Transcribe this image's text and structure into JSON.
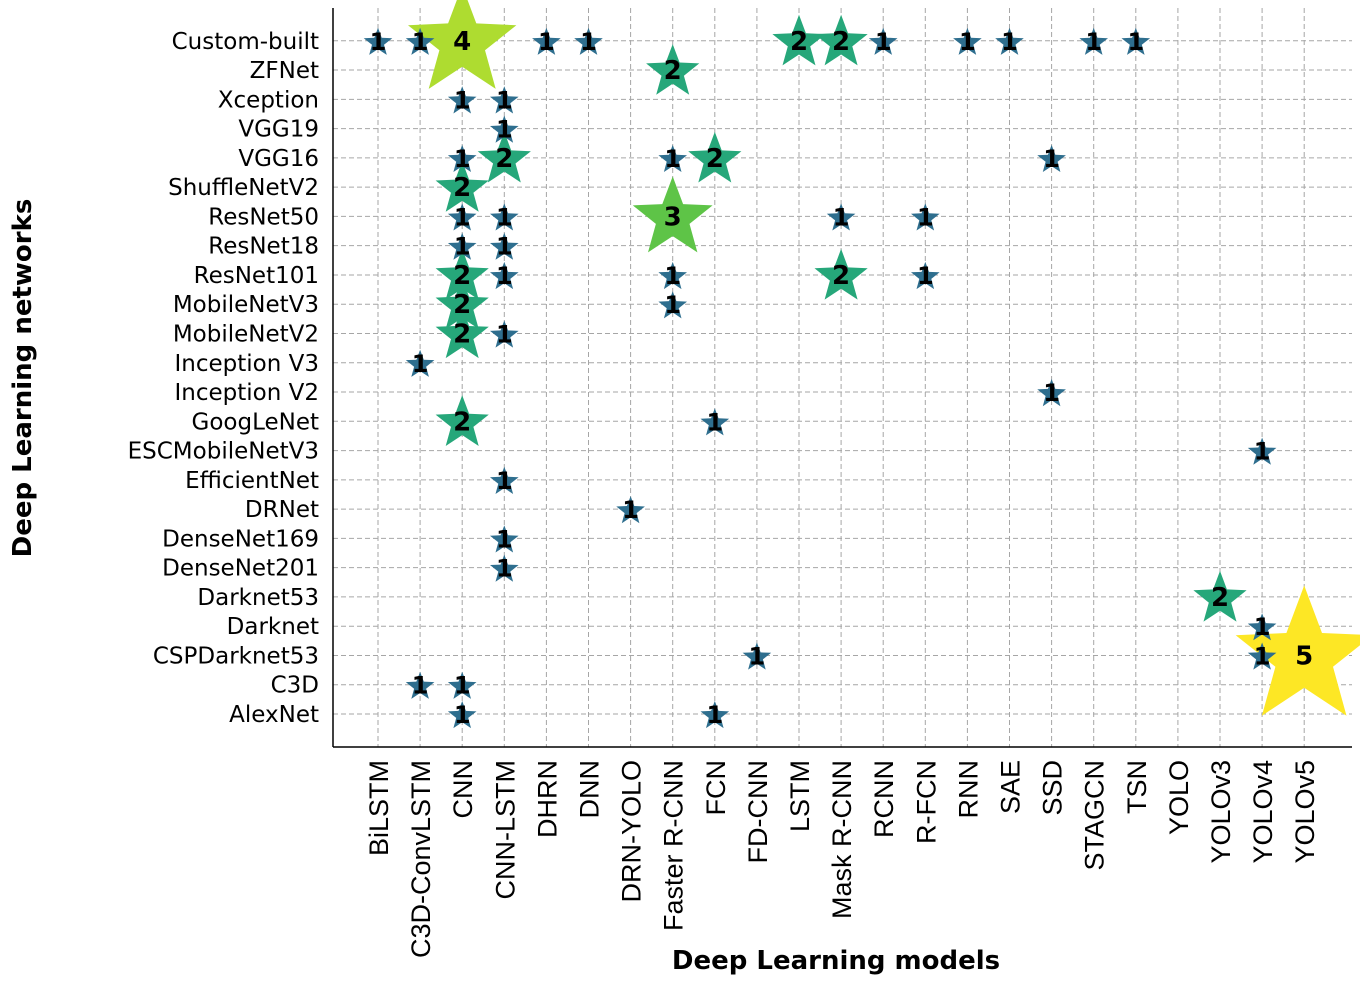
{
  "chart_data": {
    "type": "scatter",
    "marker": "star",
    "xlabel": "Deep Learning models",
    "ylabel": "Deep Learning networks",
    "x_categories": [
      "BiLSTM",
      "C3D-ConvLSTM",
      "CNN",
      "CNN-LSTM",
      "DHRN",
      "DNN",
      "DRN-YOLO",
      "Faster R-CNN",
      "FCN",
      "FD-CNN",
      "LSTM",
      "Mask R-CNN",
      "RCNN",
      "R-FCN",
      "RNN",
      "SAE",
      "SSD",
      "STAGCN",
      "TSN",
      "YOLO",
      "YOLOv3",
      "YOLOv4",
      "YOLOv5"
    ],
    "y_categories": [
      "AlexNet",
      "C3D",
      "CSPDarknet53",
      "Darknet",
      "Darknet53",
      "DenseNet201",
      "DenseNet169",
      "DRNet",
      "EfficientNet",
      "ESCMobileNetV3",
      "GoogLeNet",
      "Inception V2",
      "Inception V3",
      "MobileNetV2",
      "MobileNetV3",
      "ResNet101",
      "ResNet18",
      "ResNet50",
      "ShuffleNetV2",
      "VGG16",
      "VGG19",
      "Xception",
      "ZFNet",
      "Custom-built"
    ],
    "grid": true,
    "colormap": "viridis",
    "count_range": [
      1,
      5
    ],
    "points": [
      {
        "x": "BiLSTM",
        "y": "Custom-built",
        "count": 1
      },
      {
        "x": "C3D-ConvLSTM",
        "y": "Custom-built",
        "count": 1
      },
      {
        "x": "CNN",
        "y": "Custom-built",
        "count": 4
      },
      {
        "x": "DHRN",
        "y": "Custom-built",
        "count": 1
      },
      {
        "x": "DNN",
        "y": "Custom-built",
        "count": 1
      },
      {
        "x": "LSTM",
        "y": "Custom-built",
        "count": 2
      },
      {
        "x": "Mask R-CNN",
        "y": "Custom-built",
        "count": 2
      },
      {
        "x": "RCNN",
        "y": "Custom-built",
        "count": 1
      },
      {
        "x": "RNN",
        "y": "Custom-built",
        "count": 1
      },
      {
        "x": "SAE",
        "y": "Custom-built",
        "count": 1
      },
      {
        "x": "STAGCN",
        "y": "Custom-built",
        "count": 1
      },
      {
        "x": "TSN",
        "y": "Custom-built",
        "count": 1
      },
      {
        "x": "Faster R-CNN",
        "y": "ZFNet",
        "count": 2
      },
      {
        "x": "CNN",
        "y": "Xception",
        "count": 1
      },
      {
        "x": "CNN-LSTM",
        "y": "Xception",
        "count": 1
      },
      {
        "x": "CNN-LSTM",
        "y": "VGG19",
        "count": 1
      },
      {
        "x": "CNN",
        "y": "VGG16",
        "count": 1
      },
      {
        "x": "CNN-LSTM",
        "y": "VGG16",
        "count": 2
      },
      {
        "x": "Faster R-CNN",
        "y": "VGG16",
        "count": 1
      },
      {
        "x": "FCN",
        "y": "VGG16",
        "count": 2
      },
      {
        "x": "SSD",
        "y": "VGG16",
        "count": 1
      },
      {
        "x": "CNN",
        "y": "ShuffleNetV2",
        "count": 2
      },
      {
        "x": "CNN",
        "y": "ResNet50",
        "count": 1
      },
      {
        "x": "CNN-LSTM",
        "y": "ResNet50",
        "count": 1
      },
      {
        "x": "Faster R-CNN",
        "y": "ResNet50",
        "count": 3
      },
      {
        "x": "Mask R-CNN",
        "y": "ResNet50",
        "count": 1
      },
      {
        "x": "R-FCN",
        "y": "ResNet50",
        "count": 1
      },
      {
        "x": "CNN",
        "y": "ResNet18",
        "count": 1
      },
      {
        "x": "CNN-LSTM",
        "y": "ResNet18",
        "count": 1
      },
      {
        "x": "CNN",
        "y": "ResNet101",
        "count": 2
      },
      {
        "x": "CNN-LSTM",
        "y": "ResNet101",
        "count": 1
      },
      {
        "x": "Faster R-CNN",
        "y": "ResNet101",
        "count": 1
      },
      {
        "x": "Mask R-CNN",
        "y": "ResNet101",
        "count": 2
      },
      {
        "x": "R-FCN",
        "y": "ResNet101",
        "count": 1
      },
      {
        "x": "CNN",
        "y": "MobileNetV3",
        "count": 2
      },
      {
        "x": "Faster R-CNN",
        "y": "MobileNetV3",
        "count": 1
      },
      {
        "x": "CNN",
        "y": "MobileNetV2",
        "count": 2
      },
      {
        "x": "CNN-LSTM",
        "y": "MobileNetV2",
        "count": 1
      },
      {
        "x": "C3D-ConvLSTM",
        "y": "Inception V3",
        "count": 1
      },
      {
        "x": "SSD",
        "y": "Inception V2",
        "count": 1
      },
      {
        "x": "CNN",
        "y": "GoogLeNet",
        "count": 2
      },
      {
        "x": "FCN",
        "y": "GoogLeNet",
        "count": 1
      },
      {
        "x": "YOLOv4",
        "y": "ESCMobileNetV3",
        "count": 1
      },
      {
        "x": "CNN-LSTM",
        "y": "EfficientNet",
        "count": 1
      },
      {
        "x": "DRN-YOLO",
        "y": "DRNet",
        "count": 1
      },
      {
        "x": "CNN-LSTM",
        "y": "DenseNet169",
        "count": 1
      },
      {
        "x": "CNN-LSTM",
        "y": "DenseNet201",
        "count": 1
      },
      {
        "x": "YOLOv3",
        "y": "Darknet53",
        "count": 2
      },
      {
        "x": "YOLOv4",
        "y": "Darknet",
        "count": 1
      },
      {
        "x": "FD-CNN",
        "y": "CSPDarknet53",
        "count": 1
      },
      {
        "x": "YOLOv4",
        "y": "CSPDarknet53",
        "count": 1
      },
      {
        "x": "YOLOv5",
        "y": "CSPDarknet53",
        "count": 5
      },
      {
        "x": "C3D-ConvLSTM",
        "y": "C3D",
        "count": 1
      },
      {
        "x": "CNN",
        "y": "C3D",
        "count": 1
      },
      {
        "x": "CNN",
        "y": "AlexNet",
        "count": 1
      },
      {
        "x": "FCN",
        "y": "AlexNet",
        "count": 1
      }
    ]
  }
}
